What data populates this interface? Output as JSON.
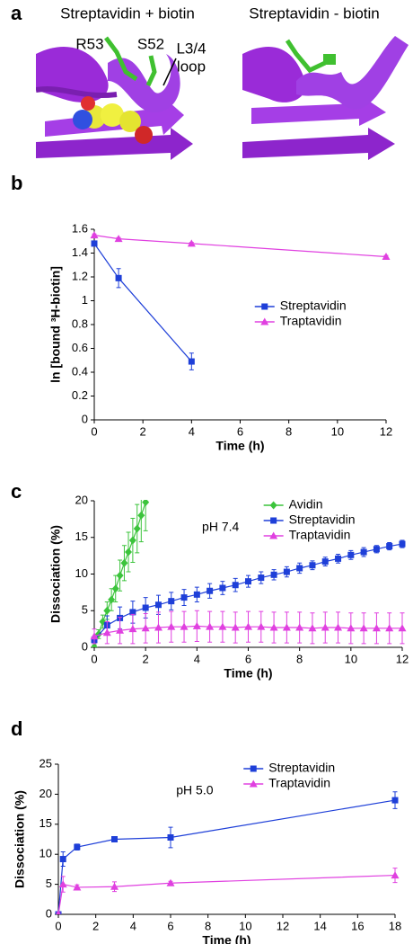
{
  "figure": {
    "panel_a": {
      "label": "a",
      "left_title": "Streptavidin + biotin",
      "right_title": "Streptavidin - biotin",
      "residue_1": "R53",
      "residue_2": "S52",
      "loop_line_1": "L3/4",
      "loop_line_2": "loop"
    }
  },
  "chart_data": [
    {
      "type": "line",
      "label": "b",
      "xlabel": "Time (h)",
      "ylabel": "ln [bound ³H-biotin]",
      "xlim": [
        0,
        12
      ],
      "xticks": [
        0,
        2,
        4,
        6,
        8,
        10,
        12
      ],
      "ylim": [
        0,
        1.6
      ],
      "yticks": [
        0,
        0.2,
        0.4,
        0.6,
        0.8,
        1,
        1.2,
        1.4,
        1.6
      ],
      "legend": "center right",
      "series": [
        {
          "name": "Streptavidin",
          "color": "#1e3fd8",
          "marker": "square",
          "x": [
            0,
            1,
            4
          ],
          "values": [
            1.48,
            1.19,
            0.49
          ],
          "errors": [
            0.02,
            0.08,
            0.07
          ]
        },
        {
          "name": "Traptavidin",
          "color": "#e040e0",
          "marker": "triangle",
          "x": [
            0,
            1,
            4,
            12
          ],
          "values": [
            1.55,
            1.52,
            1.48,
            1.37
          ],
          "errors": [
            0.01,
            0.01,
            0.01,
            0.01
          ]
        }
      ]
    },
    {
      "type": "line",
      "label": "c",
      "xlabel": "Time (h)",
      "ylabel": "Dissociation (%)",
      "annotation": "pH 7.4",
      "xlim": [
        0,
        12
      ],
      "xticks": [
        0,
        2,
        4,
        6,
        8,
        10,
        12
      ],
      "ylim": [
        0,
        20
      ],
      "yticks": [
        0,
        5,
        10,
        15,
        20
      ],
      "legend": "upper right",
      "series": [
        {
          "name": "Avidin",
          "color": "#3cc43c",
          "marker": "diamond",
          "x": [
            0,
            0.17,
            0.33,
            0.5,
            0.67,
            0.83,
            1,
            1.17,
            1.33,
            1.5,
            1.67,
            1.83,
            2
          ],
          "values": [
            0,
            1.8,
            3.5,
            5,
            6.5,
            8,
            9.8,
            11.5,
            13,
            14.6,
            16.2,
            18,
            19.8
          ],
          "errors": [
            0.3,
            0.6,
            0.9,
            1.2,
            1.5,
            1.8,
            2.1,
            2.4,
            2.7,
            3,
            3.3,
            3.6,
            3.9
          ]
        },
        {
          "name": "Streptavidin",
          "color": "#1e3fd8",
          "marker": "square",
          "x": [
            0,
            0.5,
            1,
            1.5,
            2,
            2.5,
            3,
            3.5,
            4,
            4.5,
            5,
            5.5,
            6,
            6.5,
            7,
            7.5,
            8,
            8.5,
            9,
            9.5,
            10,
            10.5,
            11,
            11.5,
            12
          ],
          "values": [
            1,
            3,
            4,
            4.8,
            5.4,
            5.8,
            6.3,
            6.8,
            7.2,
            7.7,
            8.1,
            8.5,
            9,
            9.5,
            9.9,
            10.3,
            10.8,
            11.2,
            11.7,
            12.1,
            12.6,
            13,
            13.4,
            13.8,
            14.1
          ],
          "errors": [
            0.5,
            1.3,
            1.5,
            1.5,
            1.4,
            1.3,
            1.2,
            1.1,
            1,
            1,
            0.9,
            0.9,
            0.8,
            0.8,
            0.7,
            0.7,
            0.7,
            0.6,
            0.6,
            0.6,
            0.6,
            0.6,
            0.5,
            0.5,
            0.5
          ]
        },
        {
          "name": "Traptavidin",
          "color": "#e040e0",
          "marker": "triangle",
          "x": [
            0,
            0.5,
            1,
            1.5,
            2,
            2.5,
            3,
            3.5,
            4,
            4.5,
            5,
            5.5,
            6,
            6.5,
            7,
            7.5,
            8,
            8.5,
            9,
            9.5,
            10,
            10.5,
            11,
            11.5,
            12
          ],
          "values": [
            1.5,
            2,
            2.3,
            2.5,
            2.6,
            2.7,
            2.8,
            2.8,
            2.9,
            2.8,
            2.8,
            2.7,
            2.8,
            2.8,
            2.7,
            2.7,
            2.7,
            2.6,
            2.7,
            2.7,
            2.6,
            2.6,
            2.6,
            2.6,
            2.6
          ],
          "errors": [
            1,
            1.5,
            1.8,
            2,
            2,
            2.1,
            2.1,
            2.1,
            2.1,
            2.1,
            2.1,
            2.1,
            2.1,
            2.1,
            2.1,
            2.1,
            2.1,
            2.1,
            2.1,
            2.1,
            2.1,
            2.1,
            2.1,
            2.1,
            2.1
          ]
        }
      ]
    },
    {
      "type": "line",
      "label": "d",
      "xlabel": "Time (h)",
      "ylabel": "Dissociation (%)",
      "annotation": "pH 5.0",
      "xlim": [
        0,
        18
      ],
      "xticks": [
        0,
        2,
        4,
        6,
        8,
        10,
        12,
        14,
        16,
        18
      ],
      "ylim": [
        0,
        25
      ],
      "yticks": [
        0,
        5,
        10,
        15,
        20,
        25
      ],
      "legend": "upper right",
      "series": [
        {
          "name": "Streptavidin",
          "color": "#1e3fd8",
          "marker": "square",
          "x": [
            0,
            0.25,
            1,
            3,
            6,
            18
          ],
          "values": [
            0,
            9.2,
            11.2,
            12.5,
            12.8,
            19
          ],
          "errors": [
            0.3,
            1.2,
            0.5,
            0.4,
            1.7,
            1.4
          ]
        },
        {
          "name": "Traptavidin",
          "color": "#e040e0",
          "marker": "triangle",
          "x": [
            0,
            0.25,
            1,
            3,
            6,
            18
          ],
          "values": [
            0,
            5,
            4.5,
            4.6,
            5.2,
            6.5
          ],
          "errors": [
            0.3,
            1.3,
            0.4,
            0.8,
            0.3,
            1.2
          ]
        }
      ]
    }
  ]
}
